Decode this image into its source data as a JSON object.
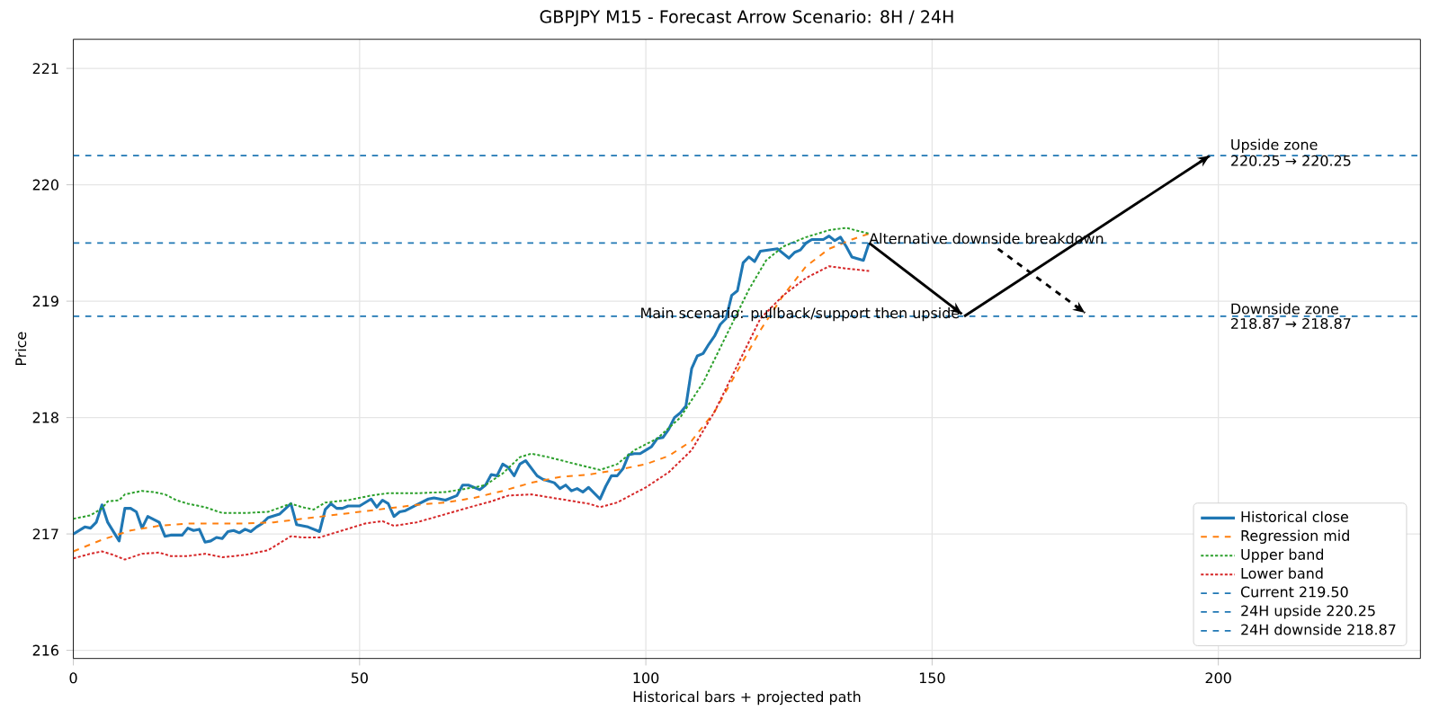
{
  "chart_data": {
    "type": "line",
    "title": "GBPJPY M15 - Forecast Arrow Scenario: 8H / 24H",
    "xlabel": "Historical bars + projected path",
    "ylabel": "Price",
    "xlim": [
      0,
      235.3
    ],
    "ylim": [
      215.93,
      221.25
    ],
    "xticks": [
      0,
      50,
      100,
      150,
      200
    ],
    "yticks": [
      216,
      217,
      218,
      219,
      220,
      221
    ],
    "grid": true,
    "legend": "bottom right",
    "marker": "none",
    "series": [
      {
        "name": "Historical close",
        "color": "#1f77b4",
        "line_style": "solid",
        "x": [
          0,
          2,
          3,
          4,
          5,
          6,
          8,
          9,
          10,
          11,
          12,
          13,
          15,
          16,
          17,
          19,
          20,
          21,
          22,
          23,
          24,
          25,
          26,
          27,
          28,
          29,
          30,
          31,
          32,
          33,
          34,
          36,
          38,
          39,
          41,
          43,
          44,
          45,
          46,
          47,
          48,
          50,
          52,
          53,
          54,
          55,
          56,
          57,
          58,
          60,
          62,
          63,
          65,
          67,
          68,
          69,
          71,
          72,
          73,
          74,
          75,
          76,
          77,
          78,
          79,
          81,
          82,
          84,
          85,
          86,
          87,
          88,
          89,
          90,
          92,
          93,
          94,
          95,
          96,
          97,
          98,
          99,
          100,
          101,
          102,
          103,
          104,
          105,
          106,
          107,
          108,
          109,
          110,
          111,
          112,
          113,
          114,
          115,
          116,
          117,
          118,
          119,
          120,
          123,
          125,
          126,
          127,
          128,
          129,
          131,
          132,
          133,
          134,
          135,
          136,
          138,
          139
        ],
        "values": [
          217.0,
          217.06,
          217.05,
          217.1,
          217.25,
          217.1,
          216.94,
          217.22,
          217.22,
          217.19,
          217.05,
          217.15,
          217.1,
          216.98,
          216.99,
          216.99,
          217.05,
          217.03,
          217.04,
          216.93,
          216.94,
          216.97,
          216.96,
          217.02,
          217.03,
          217.01,
          217.04,
          217.02,
          217.06,
          217.09,
          217.14,
          217.17,
          217.26,
          217.08,
          217.06,
          217.02,
          217.21,
          217.26,
          217.22,
          217.22,
          217.24,
          217.24,
          217.3,
          217.23,
          217.29,
          217.26,
          217.15,
          217.19,
          217.2,
          217.25,
          217.3,
          217.31,
          217.29,
          217.33,
          217.42,
          217.42,
          217.38,
          217.42,
          217.51,
          217.5,
          217.6,
          217.57,
          217.5,
          217.6,
          217.63,
          217.5,
          217.47,
          217.44,
          217.39,
          217.42,
          217.37,
          217.39,
          217.36,
          217.4,
          217.3,
          217.41,
          217.5,
          217.5,
          217.56,
          217.68,
          217.69,
          217.69,
          217.72,
          217.75,
          217.82,
          217.83,
          217.9,
          218.0,
          218.04,
          218.1,
          218.42,
          218.53,
          218.55,
          218.63,
          218.7,
          218.8,
          218.85,
          219.05,
          219.09,
          219.33,
          219.38,
          219.34,
          219.43,
          219.45,
          219.37,
          219.42,
          219.44,
          219.5,
          219.53,
          219.53,
          219.56,
          219.52,
          219.55,
          219.47,
          219.38,
          219.35,
          219.5
        ]
      },
      {
        "name": "Regression mid",
        "color": "#ff7f0e",
        "line_style": "dashed",
        "x": [
          0,
          5,
          10,
          15,
          20,
          25,
          30,
          35,
          40,
          45,
          50,
          55,
          60,
          65,
          70,
          75,
          80,
          85,
          90,
          95,
          100,
          104,
          108,
          112,
          116,
          120,
          124,
          128,
          132,
          136,
          139
        ],
        "values": [
          216.85,
          216.95,
          217.03,
          217.07,
          217.09,
          217.09,
          217.09,
          217.1,
          217.13,
          217.16,
          217.19,
          217.22,
          217.25,
          217.27,
          217.31,
          217.37,
          217.44,
          217.49,
          217.51,
          217.55,
          217.6,
          217.67,
          217.8,
          218.05,
          218.4,
          218.75,
          219.05,
          219.3,
          219.45,
          219.53,
          219.58
        ]
      },
      {
        "name": "Upper band",
        "color": "#2ca02c",
        "line_style": "dotted",
        "x": [
          0,
          3,
          5,
          6,
          8,
          9,
          12,
          14,
          16,
          18,
          20,
          23,
          26,
          30,
          34,
          38,
          40,
          42,
          44,
          48,
          52,
          55,
          60,
          65,
          70,
          72,
          75,
          78,
          80,
          83,
          87,
          92,
          95,
          98,
          102,
          106,
          110,
          114,
          118,
          121,
          124,
          128,
          132,
          135,
          139
        ],
        "values": [
          217.13,
          217.16,
          217.22,
          217.28,
          217.29,
          217.34,
          217.37,
          217.36,
          217.34,
          217.29,
          217.26,
          217.23,
          217.18,
          217.18,
          217.19,
          217.26,
          217.23,
          217.21,
          217.27,
          217.29,
          217.33,
          217.35,
          217.35,
          217.36,
          217.4,
          217.42,
          217.52,
          217.66,
          217.69,
          217.66,
          217.61,
          217.55,
          217.6,
          217.72,
          217.82,
          218.0,
          218.3,
          218.7,
          219.1,
          219.35,
          219.47,
          219.55,
          219.61,
          219.63,
          219.58
        ]
      },
      {
        "name": "Lower band",
        "color": "#d62728",
        "line_style": "dotted",
        "x": [
          0,
          3,
          5,
          7,
          9,
          12,
          15,
          17,
          20,
          23,
          26,
          30,
          34,
          38,
          40,
          43,
          47,
          51,
          54,
          56,
          60,
          65,
          70,
          73,
          76,
          80,
          85,
          90,
          92,
          95,
          100,
          104,
          108,
          112,
          116,
          120,
          124,
          128,
          132,
          135,
          139
        ],
        "values": [
          216.79,
          216.83,
          216.85,
          216.82,
          216.78,
          216.83,
          216.84,
          216.81,
          216.81,
          216.83,
          216.8,
          216.82,
          216.86,
          216.98,
          216.97,
          216.97,
          217.03,
          217.09,
          217.11,
          217.07,
          217.1,
          217.17,
          217.24,
          217.28,
          217.33,
          217.34,
          217.3,
          217.26,
          217.23,
          217.27,
          217.4,
          217.53,
          217.72,
          218.05,
          218.45,
          218.85,
          219.05,
          219.2,
          219.3,
          219.28,
          219.26
        ]
      },
      {
        "color": "#000000",
        "line_style": "solid",
        "x": [
          139,
          155.2
        ],
        "values": [
          219.5,
          218.89
        ]
      },
      {
        "color": "#000000",
        "line_style": "solid",
        "x": [
          155.6,
          198.5
        ],
        "values": [
          218.87,
          220.25
        ]
      },
      {
        "color": "#000000",
        "line_style": "dashed",
        "x": [
          161.5,
          176.7
        ],
        "values": [
          219.45,
          218.9
        ]
      }
    ],
    "ref_lines": [
      {
        "axis": "y",
        "value": 219.5,
        "label": "Current 219.50",
        "color": "#1f77b4",
        "line_style": "dashed"
      },
      {
        "axis": "y",
        "value": 220.25,
        "label": "24H upside 220.25",
        "color": "#1f77b4",
        "line_style": "dashed"
      },
      {
        "axis": "y",
        "value": 218.87,
        "label": "24H downside 218.87",
        "color": "#1f77b4",
        "line_style": "dashed"
      }
    ],
    "annotations": [
      "Main scenario: pullback/support then upside",
      {
        "text": "Alternative downside breakdown",
        "x": 138.9,
        "y": 219.54
      },
      "Upside zone",
      "220.25 → 220.25",
      "Downside zone",
      "218.87 → 218.87"
    ]
  }
}
